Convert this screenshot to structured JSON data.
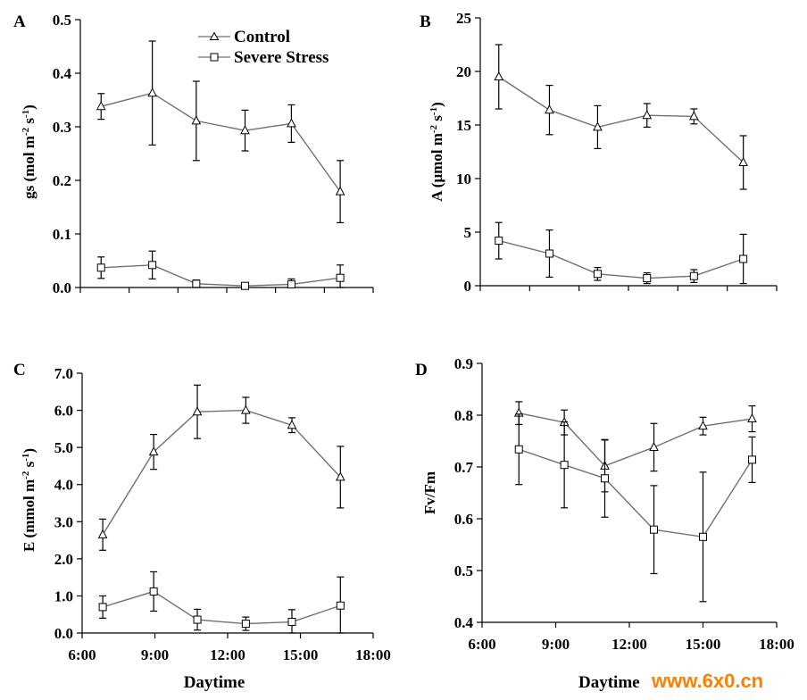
{
  "watermark": "www.6x0.cn",
  "legend": {
    "control": "Control",
    "stress": "Severe Stress"
  },
  "chart_data": [
    {
      "panel": "A",
      "type": "line",
      "ylabel": "gs (mol m-2 s-1)",
      "ylim": [
        0,
        0.5
      ],
      "yticks": [
        0.0,
        0.1,
        0.2,
        0.3,
        0.4,
        0.5
      ],
      "ytick_labels": [
        "0.0",
        "0.1",
        "0.2",
        "0.3",
        "0.4",
        "0.5"
      ],
      "xlim": [
        6,
        18
      ],
      "xtick_count": 7,
      "x": [
        6.85,
        8.95,
        10.75,
        12.75,
        14.65,
        16.65
      ],
      "series": [
        {
          "name": "Control",
          "marker": "triangle",
          "values": [
            0.338,
            0.363,
            0.311,
            0.293,
            0.306,
            0.179
          ],
          "errors": [
            0.024,
            0.097,
            0.074,
            0.038,
            0.035,
            0.058
          ]
        },
        {
          "name": "Severe Stress",
          "marker": "square",
          "values": [
            0.037,
            0.042,
            0.007,
            0.003,
            0.006,
            0.018
          ],
          "errors": [
            0.02,
            0.026,
            0.007,
            0.003,
            0.01,
            0.024
          ]
        }
      ]
    },
    {
      "panel": "B",
      "type": "line",
      "ylabel": "A (μmol m-2 s-1)",
      "ylim": [
        0,
        25
      ],
      "yticks": [
        0,
        5,
        10,
        15,
        20,
        25
      ],
      "ytick_labels": [
        "0",
        "5",
        "10",
        "15",
        "20",
        "25"
      ],
      "xlim": [
        6,
        18
      ],
      "xtick_count": 7,
      "x": [
        6.75,
        8.8,
        10.75,
        12.75,
        14.65,
        16.65
      ],
      "series": [
        {
          "name": "Control",
          "marker": "triangle",
          "values": [
            19.5,
            16.4,
            14.8,
            15.9,
            15.8,
            11.5
          ],
          "errors": [
            3.0,
            2.3,
            2.0,
            1.1,
            0.7,
            2.5
          ]
        },
        {
          "name": "Severe Stress",
          "marker": "square",
          "values": [
            4.2,
            3.0,
            1.1,
            0.7,
            0.9,
            2.5
          ],
          "errors": [
            1.7,
            2.2,
            0.6,
            0.5,
            0.6,
            2.3
          ]
        }
      ]
    },
    {
      "panel": "C",
      "type": "line",
      "ylabel": "E (mmol m-2 s-1)",
      "xlabel": "Daytime",
      "ylim": [
        0,
        7
      ],
      "yticks": [
        0,
        1,
        2,
        3,
        4,
        5,
        6,
        7
      ],
      "ytick_labels": [
        "0.0",
        "1.0",
        "2.0",
        "3.0",
        "4.0",
        "5.0",
        "6.0",
        "7.0"
      ],
      "xlim": [
        6,
        18
      ],
      "xtick_labels": [
        "6:00",
        "9:00",
        "12:00",
        "15:00",
        "18:00"
      ],
      "xtick_count": 5,
      "x": [
        6.85,
        8.95,
        10.75,
        12.75,
        14.65,
        16.65
      ],
      "series": [
        {
          "name": "Control",
          "marker": "triangle",
          "values": [
            2.65,
            4.88,
            5.96,
            6.0,
            5.6,
            4.2
          ],
          "errors": [
            0.42,
            0.47,
            0.72,
            0.35,
            0.2,
            0.83
          ]
        },
        {
          "name": "Severe Stress",
          "marker": "square",
          "values": [
            0.7,
            1.12,
            0.36,
            0.25,
            0.3,
            0.74
          ],
          "errors": [
            0.3,
            0.53,
            0.28,
            0.18,
            0.33,
            0.77
          ]
        }
      ]
    },
    {
      "panel": "D",
      "type": "line",
      "ylabel": "Fv/Fm",
      "xlabel": "Daytime",
      "ylim": [
        0.4,
        0.9
      ],
      "yticks": [
        0.4,
        0.5,
        0.6,
        0.7,
        0.8,
        0.9
      ],
      "ytick_labels": [
        "0.4",
        "0.5",
        "0.6",
        "0.7",
        "0.8",
        "0.9"
      ],
      "xlim": [
        6,
        18
      ],
      "xtick_labels": [
        "6:00",
        "9:00",
        "12:00",
        "15:00",
        "18:00"
      ],
      "xtick_count": 5,
      "x": [
        7.5,
        9.35,
        11.0,
        13.0,
        15.0,
        17.0
      ],
      "series": [
        {
          "name": "Control",
          "marker": "triangle",
          "values": [
            0.804,
            0.786,
            0.702,
            0.738,
            0.779,
            0.793
          ],
          "errors": [
            0.022,
            0.024,
            0.05,
            0.046,
            0.017,
            0.025
          ]
        },
        {
          "name": "Severe Stress",
          "marker": "square",
          "values": [
            0.734,
            0.704,
            0.678,
            0.579,
            0.565,
            0.714
          ],
          "errors": [
            0.068,
            0.083,
            0.075,
            0.085,
            0.125,
            0.044
          ]
        }
      ]
    }
  ]
}
